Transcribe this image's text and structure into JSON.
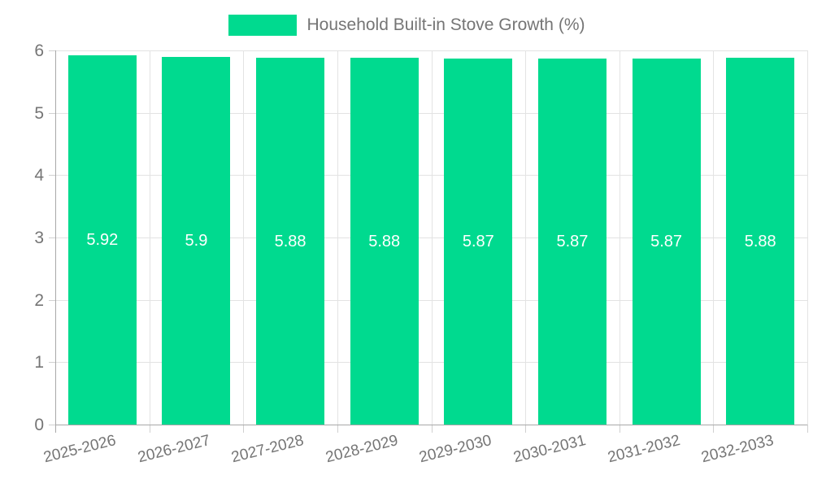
{
  "chart_data": {
    "type": "bar",
    "title": "",
    "categories": [
      "2025-2026",
      "2026-2027",
      "2027-2028",
      "2028-2029",
      "2029-2030",
      "2030-2031",
      "2031-2032",
      "2032-2033"
    ],
    "series": [
      {
        "name": "Household Built-in Stove Growth (%)",
        "values": [
          5.92,
          5.9,
          5.88,
          5.88,
          5.87,
          5.87,
          5.87,
          5.88
        ],
        "value_labels": [
          "5.92",
          "5.9",
          "5.88",
          "5.88",
          "5.87",
          "5.87",
          "5.87",
          "5.88"
        ],
        "color": "#00da8f"
      }
    ],
    "xlabel": "",
    "ylabel": "",
    "ylim": [
      0,
      6
    ],
    "yticks": [
      0,
      1,
      2,
      3,
      4,
      5,
      6
    ],
    "grid": true,
    "legend_position": "top-center",
    "colors": {
      "bar": "#00da8f",
      "value_label": "#ffffff",
      "axis_line": "#a8a8a8",
      "gridline": "#e3e3e3",
      "tick": "#d0d0d0",
      "text": "#757575",
      "background": "#ffffff"
    }
  }
}
